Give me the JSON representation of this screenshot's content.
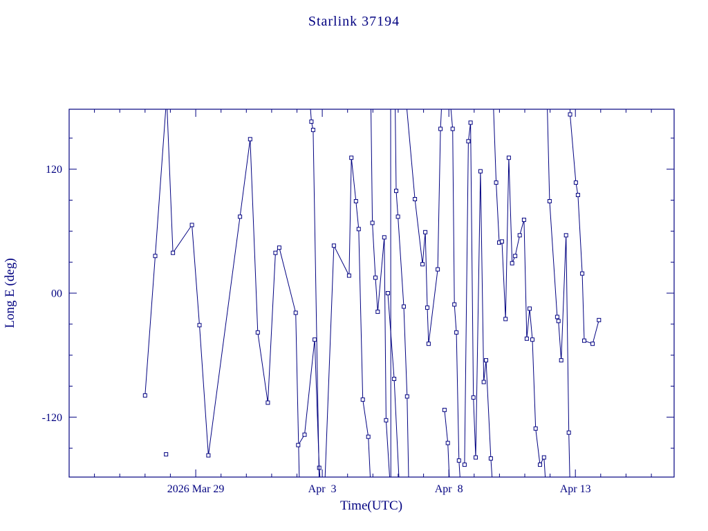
{
  "title": "Starlink 37194",
  "colors": {
    "accent": "#000080",
    "background": "#ffffff"
  },
  "chart_data": {
    "type": "line",
    "title": "Starlink 37194",
    "xlabel": "Time(UTC)",
    "ylabel": "Long E (deg)",
    "x_axis_note": "t is days since plot left edge (2026 Mar 24); labeled major ticks every 5 days, minor ticks every 1 day",
    "xlim": [
      0,
      23.9
    ],
    "ylim": [
      -178,
      178
    ],
    "grid": false,
    "legend": null,
    "marker": "open-square",
    "line_color": "#000080",
    "x_major_ticks": [
      {
        "t": 5,
        "label": "2026 Mar 29"
      },
      {
        "t": 10,
        "label": "Apr  3"
      },
      {
        "t": 15,
        "label": "Apr  8"
      },
      {
        "t": 20,
        "label": "Apr 13"
      }
    ],
    "x_minor_tick_interval": 1,
    "y_major_ticks": [
      {
        "v": 120,
        "label": "120"
      },
      {
        "v": 0,
        "label": "00"
      },
      {
        "v": -120,
        "label": "-120"
      }
    ],
    "y_minor_tick_interval": 30,
    "segments": [
      [
        [
          3.0,
          -99
        ],
        [
          3.4,
          36
        ],
        [
          3.85,
          190
        ],
        [
          4.1,
          39
        ],
        [
          4.85,
          66
        ],
        [
          5.15,
          -31
        ],
        [
          5.5,
          -157
        ],
        [
          6.75,
          74
        ],
        [
          7.15,
          149
        ],
        [
          7.45,
          -38
        ],
        [
          7.85,
          -106
        ],
        [
          8.15,
          39
        ],
        [
          8.3,
          44
        ],
        [
          8.95,
          -19
        ],
        [
          9.1,
          -190
        ]
      ],
      [
        [
          3.83,
          -156
        ]
      ],
      [
        [
          9.05,
          -147
        ],
        [
          9.3,
          -137
        ],
        [
          9.7,
          -45
        ],
        [
          9.88,
          -169
        ],
        [
          9.95,
          -190
        ]
      ],
      [
        [
          9.5,
          190
        ],
        [
          9.57,
          166
        ],
        [
          9.64,
          158
        ],
        [
          9.88,
          -185
        ]
      ],
      [
        [
          10.1,
          -185
        ],
        [
          10.46,
          46
        ],
        [
          11.06,
          17
        ],
        [
          11.15,
          131
        ],
        [
          11.33,
          89
        ],
        [
          11.44,
          62
        ],
        [
          11.6,
          -103
        ],
        [
          11.82,
          -139
        ],
        [
          11.91,
          -185
        ]
      ],
      [
        [
          11.92,
          185
        ],
        [
          11.98,
          68
        ],
        [
          12.1,
          15
        ],
        [
          12.19,
          -18
        ],
        [
          12.45,
          54
        ],
        [
          12.52,
          -123
        ],
        [
          12.68,
          -185
        ]
      ],
      [
        [
          12.7,
          190
        ],
        [
          12.71,
          -190
        ]
      ],
      [
        [
          12.59,
          0
        ],
        [
          12.84,
          -83
        ],
        [
          13.04,
          -185
        ]
      ],
      [
        [
          12.88,
          185
        ],
        [
          12.92,
          99
        ],
        [
          12.99,
          74
        ],
        [
          13.22,
          -13
        ],
        [
          13.35,
          -100
        ],
        [
          13.42,
          -190
        ]
      ],
      [
        [
          13.3,
          190
        ],
        [
          13.66,
          91
        ],
        [
          13.96,
          28
        ],
        [
          14.07,
          59
        ],
        [
          14.15,
          -14
        ],
        [
          14.2,
          -49
        ],
        [
          14.56,
          23
        ],
        [
          14.67,
          159
        ],
        [
          14.73,
          190
        ]
      ],
      [
        [
          14.83,
          -113
        ],
        [
          14.96,
          -145
        ],
        [
          15.04,
          -190
        ]
      ],
      [
        [
          15.04,
          190
        ],
        [
          15.15,
          159
        ],
        [
          15.22,
          -11
        ],
        [
          15.3,
          -38
        ],
        [
          15.4,
          -162
        ],
        [
          15.47,
          -190
        ]
      ],
      [
        [
          15.62,
          -166
        ],
        [
          15.77,
          147
        ],
        [
          15.86,
          165
        ],
        [
          15.97,
          -101
        ],
        [
          16.06,
          -159
        ],
        [
          16.25,
          118
        ],
        [
          16.38,
          -86
        ],
        [
          16.47,
          -65
        ],
        [
          16.66,
          -160
        ],
        [
          16.74,
          -190
        ]
      ],
      [
        [
          16.75,
          190
        ],
        [
          16.87,
          107
        ],
        [
          16.99,
          49
        ],
        [
          17.1,
          50
        ],
        [
          17.24,
          -25
        ],
        [
          17.37,
          131
        ],
        [
          17.5,
          29
        ],
        [
          17.62,
          36
        ],
        [
          17.8,
          56
        ],
        [
          17.97,
          71
        ],
        [
          18.08,
          -44
        ],
        [
          18.19,
          -15
        ],
        [
          18.3,
          -45
        ],
        [
          18.43,
          -131
        ],
        [
          18.6,
          -166
        ],
        [
          18.76,
          -159
        ],
        [
          18.84,
          -190
        ]
      ],
      [
        [
          18.88,
          190
        ],
        [
          18.98,
          89
        ],
        [
          19.28,
          -23
        ],
        [
          19.33,
          -27
        ],
        [
          19.44,
          -65
        ],
        [
          19.63,
          56
        ],
        [
          19.74,
          -135
        ],
        [
          19.79,
          -190
        ]
      ],
      [
        [
          19.78,
          190
        ],
        [
          19.79,
          173
        ],
        [
          20.02,
          107
        ],
        [
          20.1,
          95
        ],
        [
          20.27,
          19
        ],
        [
          20.35,
          -46
        ],
        [
          20.68,
          -49
        ],
        [
          20.93,
          -26
        ]
      ]
    ]
  }
}
